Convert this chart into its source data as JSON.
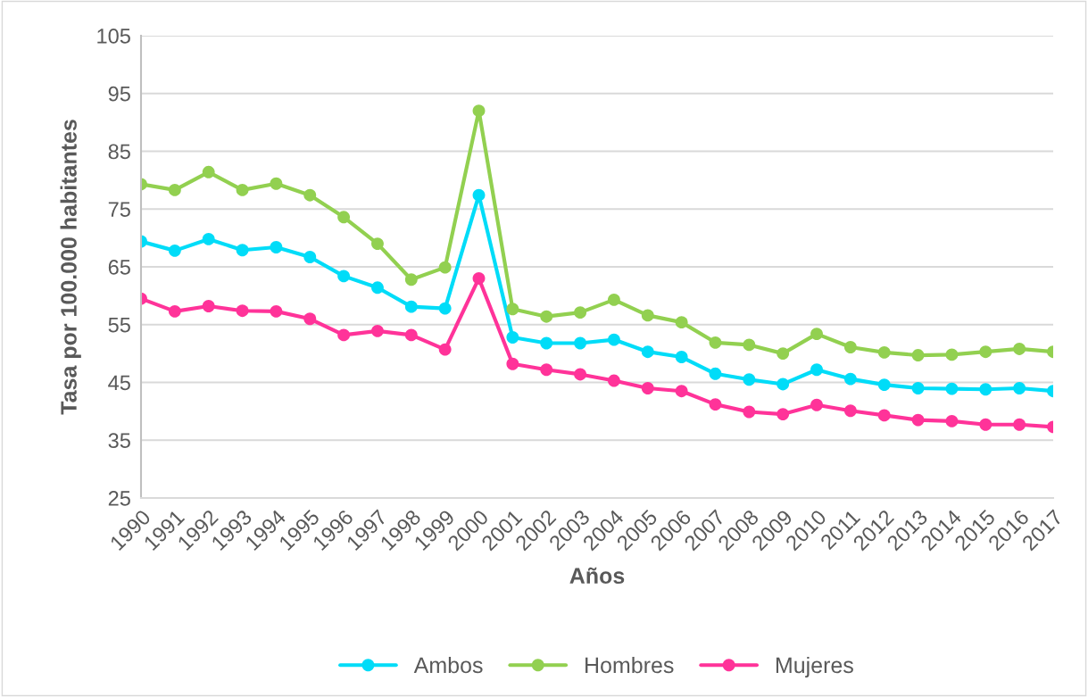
{
  "chart_data": {
    "type": "line",
    "xlabel": "Años",
    "ylabel": "Tasa por 100.000 habitantes",
    "categories": [
      "1990",
      "1991",
      "1992",
      "1993",
      "1994",
      "1995",
      "1996",
      "1997",
      "1998",
      "1999",
      "2000",
      "2001",
      "2002",
      "2003",
      "2004",
      "2005",
      "2006",
      "2007",
      "2008",
      "2009",
      "2010",
      "2011",
      "2012",
      "2013",
      "2014",
      "2015",
      "2016",
      "2017"
    ],
    "series": [
      {
        "name": "Ambos",
        "color": "#00dcf8",
        "values": [
          69.4,
          67.8,
          69.8,
          67.9,
          68.4,
          66.7,
          63.4,
          61.4,
          58.1,
          57.8,
          77.4,
          52.8,
          51.8,
          51.8,
          52.4,
          50.3,
          49.4,
          46.5,
          45.5,
          44.7,
          47.2,
          45.6,
          44.6,
          44.0,
          43.9,
          43.8,
          44.0,
          43.5
        ]
      },
      {
        "name": "Hombres",
        "color": "#92d050",
        "values": [
          79.3,
          78.3,
          81.4,
          78.3,
          79.4,
          77.4,
          73.6,
          69.0,
          62.8,
          64.9,
          92.0,
          57.7,
          56.4,
          57.1,
          59.3,
          56.6,
          55.4,
          51.9,
          51.5,
          50.0,
          53.4,
          51.1,
          50.2,
          49.7,
          49.8,
          50.3,
          50.8,
          50.3
        ]
      },
      {
        "name": "Mujeres",
        "color": "#ff3399",
        "values": [
          59.5,
          57.3,
          58.2,
          57.4,
          57.3,
          56.0,
          53.2,
          53.9,
          53.2,
          50.7,
          63.0,
          48.2,
          47.2,
          46.4,
          45.3,
          44.0,
          43.5,
          41.2,
          39.9,
          39.5,
          41.1,
          40.1,
          39.3,
          38.5,
          38.3,
          37.7,
          37.7,
          37.3
        ]
      }
    ],
    "ylim": [
      25,
      105
    ],
    "yticks": [
      25,
      35,
      45,
      55,
      65,
      75,
      85,
      95,
      105
    ],
    "grid": "y",
    "legend": "bottom",
    "marker": "circle",
    "line_style": "solid"
  }
}
